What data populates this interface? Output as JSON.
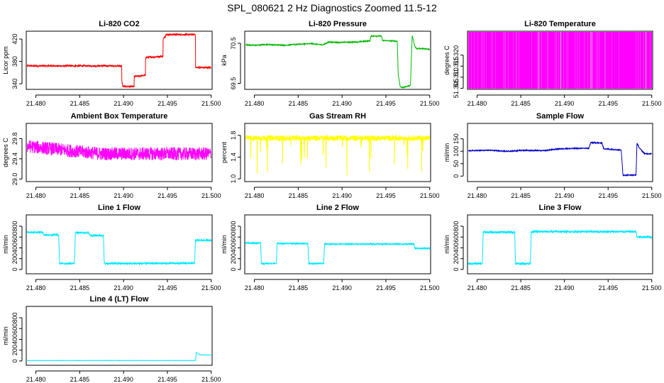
{
  "figure": {
    "title": "SPL_080621  2 Hz Diagnostics Zoomed 11.5-12"
  },
  "chart_data": [
    {
      "type": "line",
      "title": "Li-820 CO2",
      "xlabel": "",
      "ylabel": "Licor ppm",
      "color": "#ff0000",
      "xlim": [
        21.4789,
        21.5001
      ],
      "ylim": [
        330,
        434
      ],
      "x_ticks": [
        21.48,
        21.485,
        21.49,
        21.495,
        21.5
      ],
      "y_ticks": [
        340,
        380,
        420
      ],
      "x_tick_labels": [
        "21.480",
        "21.485",
        "21.490",
        "21.495",
        "21.500"
      ],
      "y_tick_labels": [
        "340",
        "380",
        "420"
      ],
      "noise": 1.5,
      "spikes": 0,
      "x": [
        21.479,
        21.4898,
        21.4898,
        21.4899,
        21.4899,
        21.4912,
        21.4912,
        21.4925,
        21.4925,
        21.4945,
        21.4945,
        21.4948,
        21.4948,
        21.4982,
        21.4982,
        21.5
      ],
      "y": [
        372,
        372,
        345,
        337,
        335,
        335,
        353,
        355,
        387,
        389,
        420,
        425,
        428,
        428,
        369,
        369
      ]
    },
    {
      "type": "line",
      "title": "Li-820 Pressure",
      "xlabel": "",
      "ylabel": "kPa",
      "color": "#00b800",
      "xlim": [
        21.4789,
        21.5001
      ],
      "ylim": [
        69.35,
        70.8
      ],
      "x_ticks": [
        21.48,
        21.485,
        21.49,
        21.495,
        21.5
      ],
      "y_ticks": [
        69.5,
        70.5
      ],
      "x_tick_labels": [
        "21.480",
        "21.485",
        "21.490",
        "21.495",
        "21.500"
      ],
      "y_tick_labels": [
        "69.5",
        "70.5"
      ],
      "noise": 0.012,
      "spikes": 0,
      "x": [
        21.479,
        21.48,
        21.4815,
        21.4835,
        21.4845,
        21.4855,
        21.4865,
        21.4878,
        21.4885,
        21.4895,
        21.4915,
        21.4932,
        21.4933,
        21.4945,
        21.4946,
        21.4963,
        21.4964,
        21.4966,
        21.4967,
        21.497,
        21.4978,
        21.498,
        21.4983,
        21.4985,
        21.5
      ],
      "y": [
        70.46,
        70.45,
        70.47,
        70.45,
        70.47,
        70.48,
        70.49,
        70.46,
        70.53,
        70.52,
        70.53,
        70.56,
        70.68,
        70.68,
        70.57,
        70.55,
        69.75,
        69.45,
        69.4,
        69.4,
        69.45,
        70.7,
        70.42,
        70.37,
        70.35
      ]
    },
    {
      "type": "line",
      "title": "Li-820 Temperature",
      "xlabel": "",
      "ylabel": "degrees C",
      "color": "#ff00ff",
      "xlim": [
        21.4789,
        21.5001
      ],
      "ylim": [
        51.3045,
        51.3308
      ],
      "x_ticks": [
        21.48,
        21.485,
        21.49,
        21.495,
        21.5
      ],
      "y_ticks": [
        51.305,
        51.31,
        51.315,
        51.32
      ],
      "x_tick_labels": [
        "21.480",
        "21.485",
        "21.490",
        "21.495",
        "21.500"
      ],
      "y_tick_labels": [
        "51.305",
        "51.310",
        "51.315",
        "51.320"
      ],
      "quantized_band": true,
      "noise": 0,
      "spikes": 0,
      "x": [
        21.479,
        21.5
      ],
      "y": [
        51.3045,
        51.3308
      ]
    },
    {
      "type": "line",
      "title": "Ambient Box Temperature",
      "xlabel": "",
      "ylabel": "degrees C",
      "color": "#ff00ff",
      "xlim": [
        21.4789,
        21.5001
      ],
      "ylim": [
        28.95,
        30.1
      ],
      "x_ticks": [
        21.48,
        21.485,
        21.49,
        21.495,
        21.5
      ],
      "y_ticks": [
        29.0,
        29.4,
        29.8
      ],
      "x_tick_labels": [
        "21.480",
        "21.485",
        "21.490",
        "21.495",
        "21.500"
      ],
      "y_tick_labels": [
        "29.0",
        "29.4",
        "29.8"
      ],
      "noise": 0.13,
      "spikes": 0,
      "x": [
        21.479,
        21.4845,
        21.4875,
        21.5
      ],
      "y": [
        29.65,
        29.55,
        29.5,
        29.5
      ]
    },
    {
      "type": "line",
      "title": "Gas Stream RH",
      "xlabel": "",
      "ylabel": "percent",
      "color": "#ffff00",
      "xlim": [
        21.4789,
        21.5001
      ],
      "ylim": [
        0.95,
        2.02
      ],
      "x_ticks": [
        21.48,
        21.485,
        21.49,
        21.495,
        21.5
      ],
      "y_ticks": [
        1.0,
        1.4,
        1.8
      ],
      "x_tick_labels": [
        "21.480",
        "21.485",
        "21.490",
        "21.495",
        "21.500"
      ],
      "y_tick_labels": [
        "1.0",
        "1.4",
        "1.8"
      ],
      "noise": 0.05,
      "spikes": 0.7,
      "x": [
        21.479,
        21.5
      ],
      "y": [
        1.75,
        1.75
      ]
    },
    {
      "type": "line",
      "title": "Sample Flow",
      "xlabel": "",
      "ylabel": "ml/min",
      "color": "#0000c8",
      "xlim": [
        21.4789,
        21.5001
      ],
      "ylim": [
        -22,
        212
      ],
      "x_ticks": [
        21.48,
        21.485,
        21.49,
        21.495,
        21.5
      ],
      "y_ticks": [
        0,
        50,
        100,
        150
      ],
      "x_tick_labels": [
        "21.480",
        "21.485",
        "21.490",
        "21.495",
        "21.500"
      ],
      "y_tick_labels": [
        "0",
        "50",
        "100",
        "150"
      ],
      "noise": 2,
      "spikes": 0,
      "x": [
        21.479,
        21.4815,
        21.4835,
        21.4855,
        21.4875,
        21.4895,
        21.4928,
        21.493,
        21.4943,
        21.4945,
        21.4965,
        21.4967,
        21.4982,
        21.4983,
        21.4986,
        21.4992,
        21.5
      ],
      "y": [
        102,
        104,
        100,
        104,
        102,
        110,
        112,
        135,
        133,
        110,
        105,
        4,
        4,
        133,
        112,
        90,
        90
      ]
    },
    {
      "type": "line",
      "title": "Line 1 Flow",
      "xlabel": "",
      "ylabel": "ml/min",
      "color": "#00e8ff",
      "xlim": [
        21.4789,
        21.5001
      ],
      "ylim": [
        -80,
        1010
      ],
      "x_ticks": [
        21.48,
        21.485,
        21.49,
        21.495,
        21.5
      ],
      "y_ticks": [
        0,
        200,
        400,
        600,
        800
      ],
      "x_tick_labels": [
        "21.480",
        "21.485",
        "21.490",
        "21.495",
        "21.500"
      ],
      "y_tick_labels": [
        "0",
        "200",
        "400",
        "600",
        "800"
      ],
      "noise": 18,
      "spikes": 0,
      "x": [
        21.479,
        21.4808,
        21.4809,
        21.4826,
        21.4827,
        21.4844,
        21.4845,
        21.486,
        21.4862,
        21.4877,
        21.4878,
        21.4981,
        21.4982,
        21.5
      ],
      "y": [
        690,
        690,
        640,
        640,
        110,
        110,
        680,
        680,
        630,
        630,
        110,
        115,
        540,
        540
      ]
    },
    {
      "type": "line",
      "title": "Line 2 Flow",
      "xlabel": "",
      "ylabel": "ml/min",
      "color": "#00e8ff",
      "xlim": [
        21.4789,
        21.5001
      ],
      "ylim": [
        -80,
        1010
      ],
      "x_ticks": [
        21.48,
        21.485,
        21.49,
        21.495,
        21.5
      ],
      "y_ticks": [
        0,
        200,
        400,
        600,
        800
      ],
      "x_tick_labels": [
        "21.480",
        "21.485",
        "21.490",
        "21.495",
        "21.500"
      ],
      "y_tick_labels": [
        "0",
        "200",
        "400",
        "600",
        "800"
      ],
      "noise": 12,
      "spikes": 0,
      "x": [
        21.479,
        21.4807,
        21.4808,
        21.4825,
        21.4826,
        21.4861,
        21.4862,
        21.4879,
        21.488,
        21.4982,
        21.4983,
        21.5
      ],
      "y": [
        490,
        490,
        110,
        110,
        480,
        480,
        110,
        110,
        470,
        470,
        390,
        390
      ]
    },
    {
      "type": "line",
      "title": "Line 3 Flow",
      "xlabel": "",
      "ylabel": "ml/min",
      "color": "#00e8ff",
      "xlim": [
        21.4789,
        21.5001
      ],
      "ylim": [
        -80,
        1010
      ],
      "x_ticks": [
        21.48,
        21.485,
        21.49,
        21.495,
        21.5
      ],
      "y_ticks": [
        0,
        200,
        400,
        600,
        800
      ],
      "x_tick_labels": [
        "21.480",
        "21.485",
        "21.490",
        "21.495",
        "21.500"
      ],
      "y_tick_labels": [
        "0",
        "200",
        "400",
        "600",
        "800"
      ],
      "noise": 20,
      "spikes": 0,
      "x": [
        21.479,
        21.4806,
        21.4807,
        21.4843,
        21.4844,
        21.4861,
        21.4862,
        21.4982,
        21.4983,
        21.5
      ],
      "y": [
        110,
        110,
        690,
        690,
        110,
        110,
        700,
        700,
        600,
        600
      ]
    },
    {
      "type": "line",
      "title": "Line 4 (LT) Flow",
      "xlabel": "",
      "ylabel": "ml/min",
      "color": "#00e8ff",
      "xlim": [
        21.4789,
        21.5001
      ],
      "ylim": [
        -80,
        1010
      ],
      "x_ticks": [
        21.48,
        21.485,
        21.49,
        21.495,
        21.5
      ],
      "y_ticks": [
        0,
        200,
        400,
        600,
        800
      ],
      "x_tick_labels": [
        "21.480",
        "21.485",
        "21.490",
        "21.495",
        "21.500"
      ],
      "y_tick_labels": [
        "0",
        "200",
        "400",
        "600",
        "800"
      ],
      "noise": 2,
      "spikes": 0,
      "x": [
        21.479,
        21.4982,
        21.4983,
        21.4986,
        21.4992,
        21.5
      ],
      "y": [
        8,
        8,
        160,
        120,
        110,
        110
      ]
    }
  ]
}
